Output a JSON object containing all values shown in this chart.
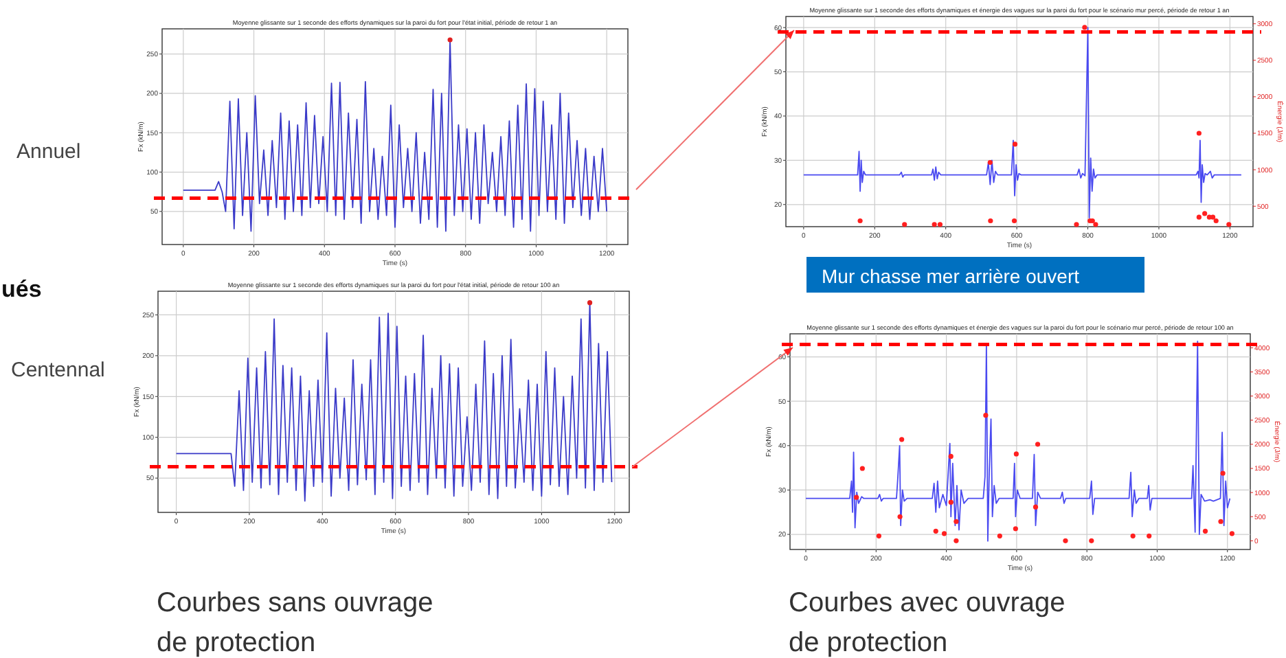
{
  "chart_data": [
    {
      "type": "line",
      "title": "Moyenne glissante sur 1 seconde des efforts dynamiques sur la paroi du fort pour l'état initial, période de retour 1 an",
      "xlabel": "Time (s)",
      "ylabel": "Fx (kN/m)",
      "xlim": [
        -60,
        1260
      ],
      "xticks": [
        0,
        200,
        400,
        600,
        800,
        1000,
        1200
      ],
      "ylim": [
        8,
        282
      ],
      "yticks": [
        50,
        100,
        150,
        200,
        250
      ],
      "grid": true,
      "marker": "none",
      "line_style": "solid",
      "series": [
        {
          "type": "line",
          "color": "#3a3ac8",
          "x": [
            0,
            90,
            100,
            110,
            120,
            132,
            144,
            156,
            168,
            180,
            192,
            204,
            216,
            228,
            240,
            252,
            264,
            276,
            288,
            300,
            312,
            324,
            336,
            348,
            360,
            372,
            384,
            396,
            408,
            420,
            432,
            444,
            456,
            468,
            480,
            492,
            504,
            516,
            528,
            540,
            552,
            564,
            576,
            588,
            600,
            612,
            624,
            636,
            648,
            660,
            672,
            684,
            696,
            708,
            720,
            732,
            744,
            756,
            768,
            780,
            792,
            804,
            816,
            828,
            840,
            852,
            864,
            876,
            888,
            900,
            912,
            924,
            936,
            948,
            960,
            972,
            984,
            996,
            1008,
            1020,
            1032,
            1044,
            1056,
            1068,
            1080,
            1092,
            1104,
            1116,
            1128,
            1140,
            1152,
            1164,
            1176,
            1188,
            1200
          ],
          "values": [
            77,
            77,
            88,
            75,
            50,
            190,
            28,
            193,
            45,
            150,
            25,
            197,
            60,
            128,
            45,
            140,
            55,
            175,
            40,
            165,
            50,
            160,
            45,
            188,
            55,
            172,
            60,
            145,
            50,
            213,
            45,
            214,
            40,
            175,
            55,
            167,
            35,
            215,
            50,
            130,
            40,
            120,
            45,
            185,
            30,
            160,
            55,
            130,
            50,
            150,
            35,
            125,
            40,
            205,
            30,
            200,
            25,
            268,
            45,
            160,
            50,
            155,
            40,
            150,
            35,
            160,
            60,
            125,
            50,
            145,
            45,
            165,
            30,
            185,
            40,
            212,
            25,
            206,
            45,
            190,
            50,
            160,
            40,
            200,
            35,
            175,
            55,
            140,
            45,
            130,
            40,
            120,
            50,
            130,
            50
          ]
        },
        {
          "type": "scatter",
          "color": "#e02020",
          "marker": "circle",
          "x": [
            756
          ],
          "values": [
            268
          ]
        }
      ],
      "ref_lines": [
        {
          "axis": "y",
          "value": 67,
          "color": "#ff0000",
          "line_style": "dashed"
        }
      ]
    },
    {
      "type": "line",
      "title": "Moyenne glissante sur 1 seconde des efforts dynamiques sur la paroi du fort pour l'état initial, période de retour 100 an",
      "xlabel": "Time (s)",
      "ylabel": "Fx (kN/m)",
      "xlim": [
        -50,
        1240
      ],
      "xticks": [
        0,
        200,
        400,
        600,
        800,
        1000,
        1200
      ],
      "ylim": [
        8,
        279
      ],
      "yticks": [
        50,
        100,
        150,
        200,
        250
      ],
      "grid": true,
      "marker": "none",
      "line_style": "solid",
      "series": [
        {
          "type": "line",
          "color": "#3a3ac8",
          "x": [
            0,
            150,
            160,
            172,
            184,
            196,
            208,
            220,
            232,
            244,
            256,
            268,
            280,
            292,
            304,
            316,
            328,
            340,
            352,
            364,
            376,
            388,
            400,
            412,
            424,
            436,
            448,
            460,
            472,
            484,
            496,
            508,
            520,
            532,
            544,
            556,
            568,
            580,
            592,
            604,
            616,
            628,
            640,
            652,
            664,
            676,
            688,
            700,
            712,
            724,
            736,
            748,
            760,
            772,
            784,
            796,
            808,
            820,
            832,
            844,
            856,
            868,
            880,
            892,
            904,
            916,
            928,
            940,
            952,
            964,
            976,
            988,
            1000,
            1012,
            1024,
            1036,
            1048,
            1060,
            1072,
            1084,
            1096,
            1108,
            1120,
            1132,
            1144,
            1156,
            1168,
            1180,
            1192
          ],
          "values": [
            80,
            80,
            40,
            157,
            35,
            197,
            45,
            185,
            38,
            205,
            42,
            245,
            30,
            188,
            45,
            185,
            35,
            175,
            22,
            157,
            40,
            170,
            45,
            228,
            28,
            160,
            50,
            148,
            35,
            195,
            42,
            165,
            48,
            195,
            30,
            247,
            45,
            252,
            25,
            236,
            40,
            175,
            35,
            178,
            45,
            225,
            30,
            160,
            50,
            200,
            38,
            190,
            28,
            185,
            40,
            125,
            35,
            165,
            45,
            218,
            30,
            178,
            25,
            200,
            40,
            220,
            38,
            135,
            45,
            170,
            35,
            165,
            28,
            205,
            42,
            185,
            40,
            150,
            30,
            175,
            50,
            245,
            38,
            265,
            35,
            215,
            45,
            205,
            45
          ]
        },
        {
          "type": "scatter",
          "color": "#e02020",
          "marker": "circle",
          "x": [
            1132
          ],
          "values": [
            265
          ]
        }
      ],
      "ref_lines": [
        {
          "axis": "y",
          "value": 64,
          "color": "#ff0000",
          "line_style": "dashed"
        }
      ]
    },
    {
      "type": "line",
      "title": "Moyenne glissante sur 1 seconde des efforts dynamiques et énergie des vagues sur la paroi du fort pour le scénario mur percé, période de retour 1 an",
      "xlabel": "Time (s)",
      "ylabel": "Fx (kN/m)",
      "y2label": "Énergie (J/m)",
      "xlim": [
        -50,
        1265
      ],
      "xticks": [
        0,
        200,
        400,
        600,
        800,
        1000,
        1200
      ],
      "ylim": [
        15,
        62.5
      ],
      "yticks": [
        20,
        30,
        40,
        50,
        60
      ],
      "y2lim": [
        220,
        3100
      ],
      "y2ticks": [
        500,
        1000,
        1500,
        2000,
        2500,
        3000
      ],
      "grid": true,
      "marker": "none",
      "line_style": "solid",
      "series": [
        {
          "type": "line",
          "color": "#4a4af0",
          "x": [
            0,
            152,
            156,
            159,
            162,
            165,
            169,
            174,
            270,
            275,
            279,
            283,
            360,
            364,
            368,
            372,
            376,
            380,
            386,
            515,
            520,
            525,
            530,
            535,
            540,
            546,
            585,
            590,
            594,
            598,
            602,
            606,
            612,
            770,
            775,
            780,
            785,
            792,
            800,
            804,
            808,
            812,
            816,
            820,
            826,
            1105,
            1110,
            1113,
            1116,
            1119,
            1122,
            1126,
            1130,
            1136,
            1145,
            1150,
            1156,
            1232
          ],
          "values": [
            26.7,
            26.7,
            32,
            23,
            30,
            25,
            27.5,
            26.7,
            26.7,
            27.3,
            26.2,
            26.7,
            26.7,
            28,
            25.5,
            28.5,
            25.8,
            27.3,
            26.7,
            26.7,
            29.5,
            24.5,
            30,
            25,
            27.5,
            26.7,
            26.7,
            34.5,
            22,
            29,
            25.5,
            27,
            26.7,
            26.7,
            28,
            26,
            27,
            26.5,
            60,
            17,
            30.5,
            23,
            28,
            26,
            26.7,
            26.7,
            27.5,
            26,
            34.5,
            20.5,
            29,
            25,
            27,
            26.7,
            27.5,
            26,
            26.7,
            26.7
          ]
        },
        {
          "type": "scatter",
          "color": "#ff2020",
          "marker": "circle",
          "axis": "y2",
          "x": [
            159,
            284,
            368,
            384,
            526,
            593,
            768,
            806,
            813,
            822,
            791,
            1113,
            1113,
            1129,
            1142,
            1152,
            1161,
            1197,
            525,
            595
          ],
          "values": [
            300,
            250,
            250,
            250,
            300,
            300,
            250,
            300,
            300,
            250,
            2950,
            1500,
            350,
            400,
            350,
            350,
            300,
            250,
            1100,
            1350
          ]
        }
      ],
      "ref_lines": [
        {
          "axis": "y",
          "value": 59,
          "color": "#ff0000",
          "line_style": "dashed"
        }
      ]
    },
    {
      "type": "line",
      "title": "Moyenne glissante sur 1 seconde des efforts dynamiques et énergie des vagues sur la paroi du fort pour le scénario mur percé, période de retour 100 an",
      "xlabel": "Time (s)",
      "ylabel": "Fx (kN/m)",
      "y2label": "Énergie (J/m)",
      "xlim": [
        -45,
        1265
      ],
      "xticks": [
        0,
        200,
        400,
        600,
        800,
        1000,
        1200
      ],
      "ylim": [
        16.6,
        65.2
      ],
      "yticks": [
        20,
        30,
        40,
        50,
        60
      ],
      "y2lim": [
        -180,
        4290
      ],
      "y2ticks": [
        0,
        500,
        1000,
        1500,
        2000,
        2500,
        3000,
        3500,
        4000
      ],
      "grid": true,
      "marker": "none",
      "line_style": "solid",
      "series": [
        {
          "type": "line",
          "color": "#4a4af0",
          "x": [
            0,
            125,
            130,
            133,
            136,
            140,
            145,
            150,
            159,
            165,
            205,
            210,
            215,
            220,
            258,
            262,
            267,
            270,
            275,
            280,
            288,
            360,
            365,
            370,
            375,
            380,
            390,
            400,
            410,
            413,
            418,
            425,
            430,
            436,
            442,
            450,
            462,
            505,
            510,
            514,
            518,
            522,
            527,
            531,
            536,
            542,
            550,
            590,
            594,
            597,
            602,
            610,
            645,
            650,
            654,
            660,
            668,
            725,
            730,
            735,
            740,
            808,
            813,
            817,
            822,
            920,
            925,
            929,
            935,
            940,
            948,
            972,
            976,
            980,
            985,
            1098,
            1102,
            1108,
            1115,
            1120,
            1125,
            1135,
            1150,
            1160,
            1180,
            1185,
            1190,
            1195,
            1200,
            1207
          ],
          "values": [
            28.1,
            28.1,
            32,
            25,
            38.5,
            21.5,
            29.5,
            27,
            28.5,
            28.1,
            28.1,
            29,
            27.5,
            28.1,
            28.1,
            33,
            40,
            22,
            30,
            27.5,
            28.1,
            28.1,
            31.5,
            25,
            32,
            26,
            29,
            26.5,
            40.5,
            24,
            36,
            22,
            31,
            21,
            30,
            27,
            28.1,
            28.1,
            33,
            63,
            18.5,
            34,
            46,
            24,
            31,
            27,
            28.1,
            28.1,
            36,
            24,
            30,
            28.1,
            28.1,
            38,
            22,
            29.5,
            28.1,
            28.1,
            29.5,
            27,
            28.1,
            28.1,
            32,
            24.5,
            28.1,
            28.1,
            34,
            24,
            30,
            27,
            28.1,
            28.1,
            31,
            25.5,
            28.1,
            28.1,
            35.5,
            20.5,
            63.5,
            20,
            29,
            27.5,
            27.8,
            27.5,
            28.1,
            43,
            22,
            32,
            26,
            28.1
          ]
        },
        {
          "type": "scatter",
          "color": "#ff2020",
          "marker": "circle",
          "axis": "y2",
          "x": [
            144,
            161,
            208,
            273,
            268,
            370,
            394,
            413,
            413,
            428,
            428,
            512,
            552,
            599,
            597,
            654,
            660,
            739,
            813,
            931,
            977,
            1137,
            1181,
            1187,
            1213
          ],
          "values": [
            900,
            1500,
            100,
            2100,
            500,
            200,
            150,
            1750,
            800,
            400,
            0,
            2600,
            100,
            1800,
            250,
            700,
            2000,
            0,
            0,
            100,
            100,
            200,
            400,
            1400,
            150
          ]
        }
      ],
      "ref_lines": [
        {
          "axis": "y",
          "value": 62.8,
          "color": "#ff0000",
          "line_style": "dashed"
        }
      ]
    },
    {
      "type": "other",
      "annotations": [
        "Annuel",
        "ués",
        "Centennal",
        "Mur chasse mer arrière ouvert",
        "Courbes sans ouvrage de protection",
        "Courbes avec ouvrage de protection"
      ]
    }
  ]
}
